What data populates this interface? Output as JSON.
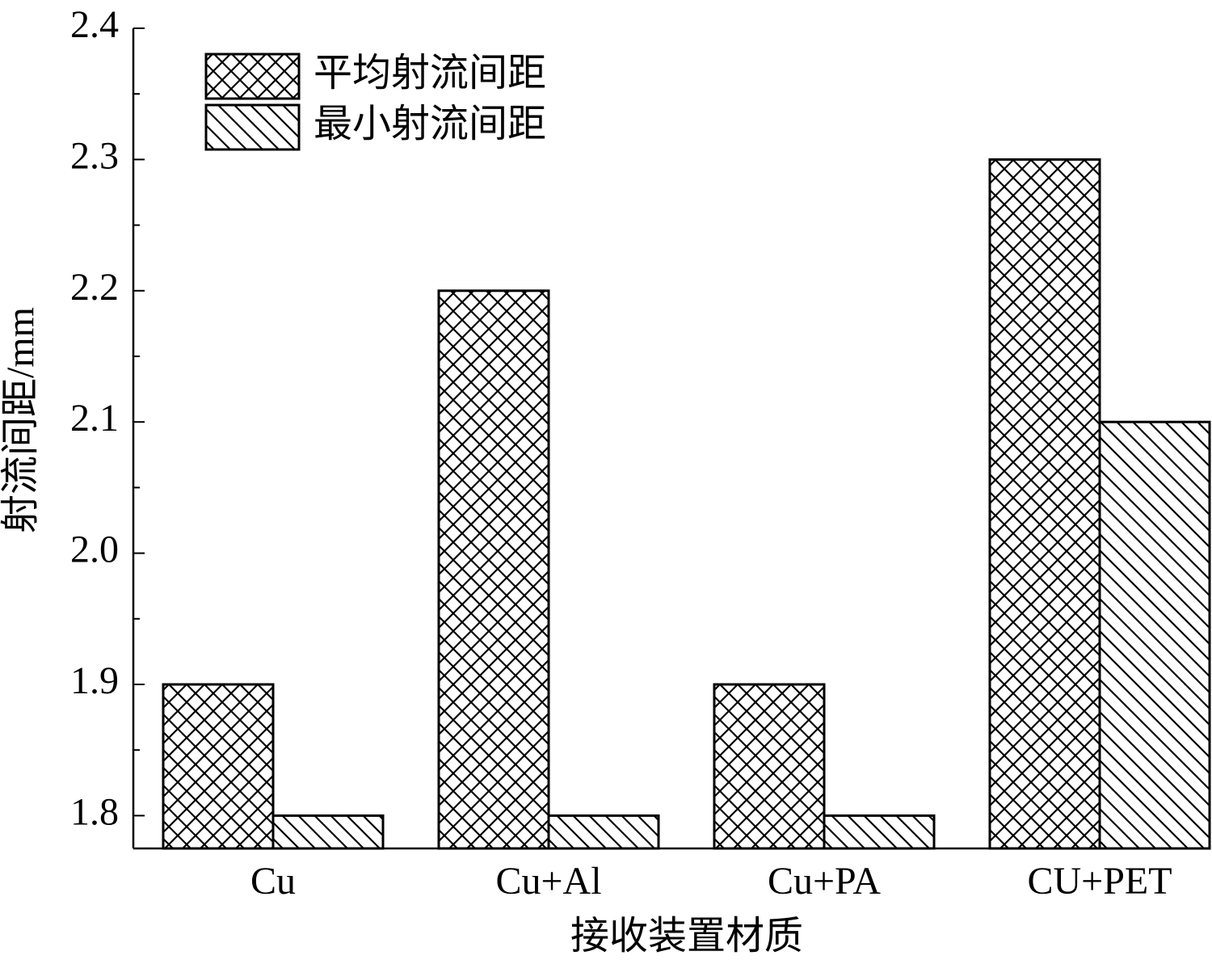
{
  "chart_data": {
    "type": "bar",
    "x_label": "接收装置材质",
    "y_label": "射流间距/mm",
    "categories": [
      "Cu",
      "Cu+Al",
      "Cu+PA",
      "CU+PET"
    ],
    "series": [
      {
        "name": "平均射流间距",
        "color": "#000000",
        "pattern": "crosshatch",
        "values": [
          1.9,
          2.2,
          1.9,
          2.3
        ]
      },
      {
        "name": "最小射流间距",
        "color": "#000000",
        "pattern": "diagonal",
        "values": [
          1.8,
          1.8,
          1.8,
          2.1
        ]
      }
    ],
    "ylim": [
      1.775,
      2.4
    ],
    "yticks": [
      {
        "value": 1.8,
        "label": "1.8"
      },
      {
        "value": 1.9,
        "label": "1.9"
      },
      {
        "value": 2.0,
        "label": "2.0"
      },
      {
        "value": 2.1,
        "label": "2.1"
      },
      {
        "value": 2.2,
        "label": "2.2"
      },
      {
        "value": 2.3,
        "label": "2.3"
      },
      {
        "value": 2.4,
        "label": "2.4"
      }
    ],
    "grid": false,
    "legend": "upper left"
  }
}
